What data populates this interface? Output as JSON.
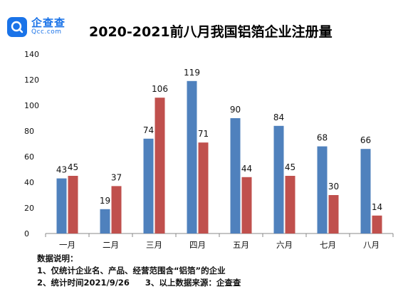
{
  "brand": {
    "name": "企查查",
    "domain": "Qcc.com"
  },
  "title": "2020-2021前八月我国铝箔企业注册量",
  "chart_data": {
    "type": "bar",
    "title": "2020-2021前八月我国铝箔企业注册量",
    "categories": [
      "一月",
      "二月",
      "三月",
      "四月",
      "五月",
      "六月",
      "七月",
      "八月"
    ],
    "series": [
      {
        "color": "#4f81bd",
        "values": [
          43,
          19,
          74,
          119,
          90,
          84,
          68,
          66
        ]
      },
      {
        "color": "#c0504d",
        "values": [
          45,
          37,
          106,
          71,
          44,
          45,
          30,
          14
        ]
      }
    ],
    "yticks": [
      0,
      20,
      40,
      60,
      80,
      100,
      120,
      140
    ],
    "ylim": [
      0,
      140
    ],
    "grid": false,
    "xlabel": "",
    "ylabel": ""
  },
  "notes": {
    "heading": "数据说明：",
    "line1": "1、仅统计企业名、产品、经营范围含“铝箔”的企业",
    "line2": "2、统计时间2021/9/26",
    "line3": "3、以上数据来源：企查查"
  }
}
